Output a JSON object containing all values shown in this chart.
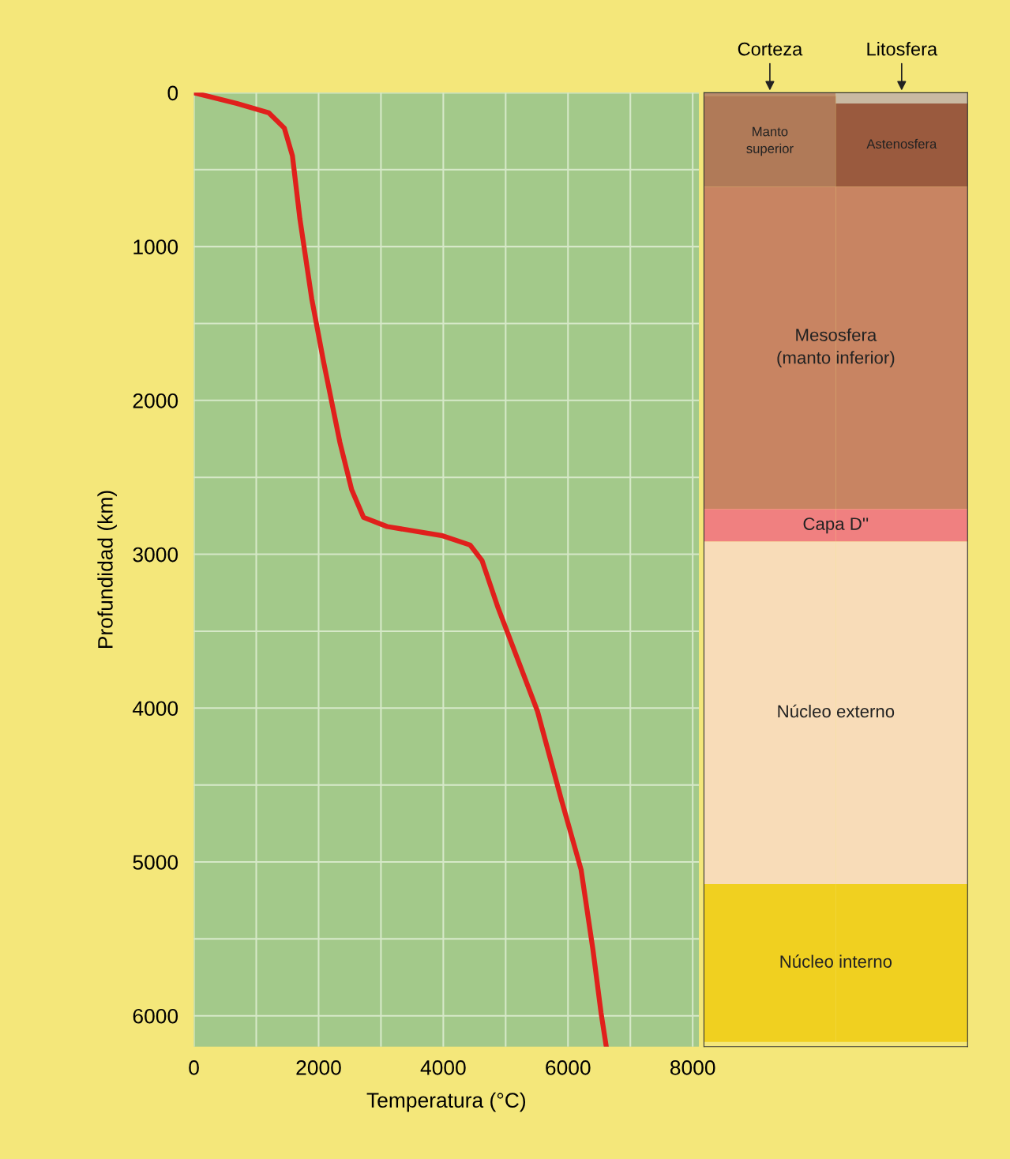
{
  "chart_data": [
    {
      "type": "line",
      "xlabel": "Temperatura (°C)",
      "ylabel": "Profundidad (km)",
      "x": [
        0,
        690,
        1200,
        1450,
        1580,
        1700,
        1890,
        2080,
        2340,
        2530,
        2720,
        3100,
        3990,
        4430,
        4620,
        4880,
        5510,
        5890,
        6210,
        6400,
        6530,
        6610
      ],
      "series": [
        {
          "color": "#e0201c",
          "values": [
            0,
            70,
            130,
            230,
            410,
            820,
            1340,
            1750,
            2270,
            2580,
            2760,
            2820,
            2880,
            2940,
            3040,
            3350,
            4020,
            4590,
            5050,
            5570,
            5980,
            6190
          ]
        }
      ],
      "xlim": [
        0,
        8100
      ],
      "xticks": [
        0,
        {
          "value": 1000,
          "label": null
        },
        2000,
        {
          "value": 3000,
          "label": null
        },
        4000,
        {
          "value": 5000,
          "label": null
        },
        6000,
        {
          "value": 7000,
          "label": null
        },
        8000
      ],
      "ylim": [
        6200,
        0
      ],
      "yticks": [
        0,
        {
          "value": 500,
          "label": null
        },
        1000,
        {
          "value": 1500,
          "label": null
        },
        2000,
        {
          "value": 2500,
          "label": null
        },
        3000,
        {
          "value": 3500,
          "label": null
        },
        4000,
        {
          "value": 4500,
          "label": null
        },
        5000,
        {
          "value": 5500,
          "label": null
        },
        6000
      ],
      "grid": true,
      "marker": "none",
      "line_style": "solid"
    },
    {
      "type": "bar",
      "stacked": true,
      "categories": [
        null,
        null
      ],
      "ylim": [
        6200,
        0
      ],
      "tick_labels": false,
      "series": [
        {
          "name": "Corteza",
          "color": "#b98a6c",
          "values": [
            20,
            null
          ]
        },
        {
          "name": "Litosfera",
          "color": "#c9b9a2",
          "values": [
            null,
            70
          ]
        },
        {
          "name": "Manto\nsuperior",
          "color": "#b07a58",
          "values": [
            590,
            null
          ]
        },
        {
          "name": "Astenosfera",
          "color": "#9a5a3e",
          "values": [
            null,
            540
          ]
        },
        {
          "name": "Mesosfera\n(manto inferior)",
          "color": "#c88462",
          "values": [
            2096,
            2096
          ]
        },
        {
          "name": "Capa D''",
          "color": "#f08080",
          "values": [
            212,
            212
          ]
        },
        {
          "name": "Núcleo externo",
          "color": "#f8dcb8",
          "values": [
            2226,
            2226
          ]
        },
        {
          "name": "Núcleo interno",
          "color": "#f0d020",
          "values": [
            1026,
            1026
          ]
        }
      ]
    }
  ]
}
